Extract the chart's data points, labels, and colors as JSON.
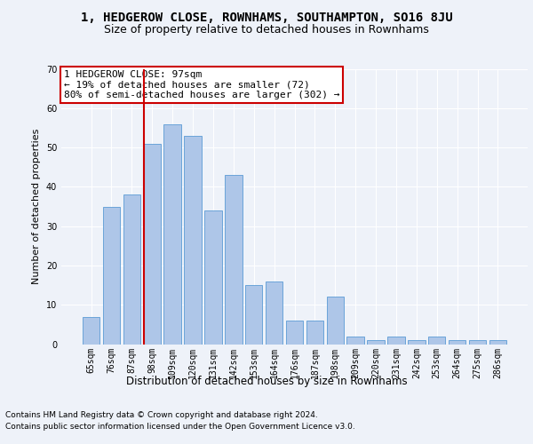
{
  "title": "1, HEDGEROW CLOSE, ROWNHAMS, SOUTHAMPTON, SO16 8JU",
  "subtitle": "Size of property relative to detached houses in Rownhams",
  "xlabel": "Distribution of detached houses by size in Rownhams",
  "ylabel": "Number of detached properties",
  "categories": [
    "65sqm",
    "76sqm",
    "87sqm",
    "98sqm",
    "109sqm",
    "120sqm",
    "131sqm",
    "142sqm",
    "153sqm",
    "164sqm",
    "176sqm",
    "187sqm",
    "198sqm",
    "209sqm",
    "220sqm",
    "231sqm",
    "242sqm",
    "253sqm",
    "264sqm",
    "275sqm",
    "286sqm"
  ],
  "values": [
    7,
    35,
    38,
    51,
    56,
    53,
    34,
    43,
    15,
    16,
    6,
    6,
    12,
    2,
    1,
    2,
    1,
    2,
    1,
    1,
    1
  ],
  "bar_color": "#aec6e8",
  "bar_edge_color": "#5b9bd5",
  "vline_x_index": 3,
  "vline_color": "#cc0000",
  "ylim": [
    0,
    70
  ],
  "yticks": [
    0,
    10,
    20,
    30,
    40,
    50,
    60,
    70
  ],
  "annotation_text": "1 HEDGEROW CLOSE: 97sqm\n← 19% of detached houses are smaller (72)\n80% of semi-detached houses are larger (302) →",
  "annotation_box_color": "#cc0000",
  "footnote1": "Contains HM Land Registry data © Crown copyright and database right 2024.",
  "footnote2": "Contains public sector information licensed under the Open Government Licence v3.0.",
  "background_color": "#eef2f9",
  "grid_color": "#ffffff",
  "title_fontsize": 10,
  "subtitle_fontsize": 9,
  "xlabel_fontsize": 8.5,
  "ylabel_fontsize": 8,
  "tick_fontsize": 7,
  "annotation_fontsize": 8,
  "footnote_fontsize": 6.5
}
